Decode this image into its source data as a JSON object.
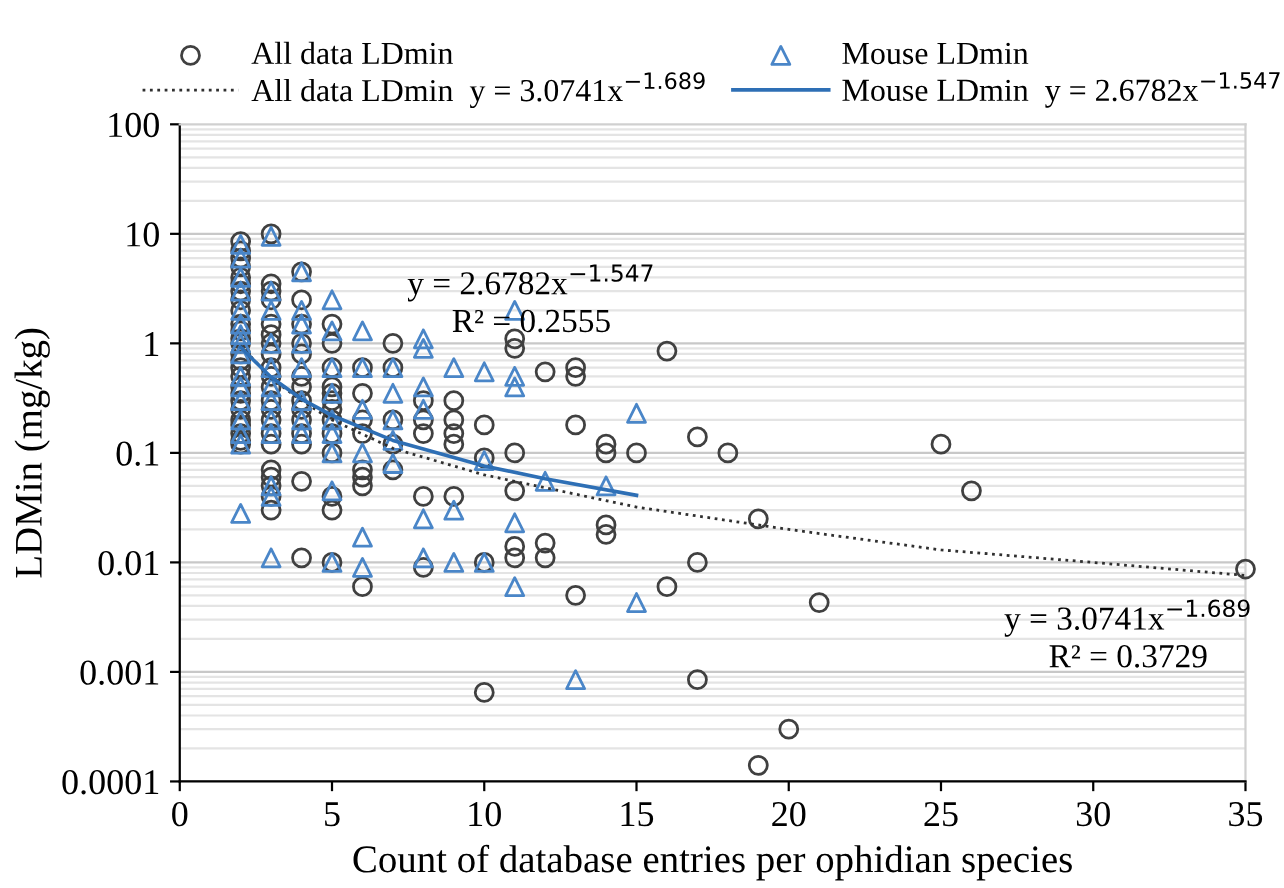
{
  "chart_data": {
    "type": "scatter",
    "xlabel": "Count of database entries per ophidian species",
    "ylabel": "LDMin (mg/kg)",
    "log": "y",
    "xlim": [
      0,
      35
    ],
    "xticks": [
      0,
      5,
      10,
      15,
      20,
      25,
      30,
      35
    ],
    "ylim": [
      0.0001,
      100
    ],
    "yticks": [
      0.0001,
      0.001,
      0.01,
      0.1,
      1,
      10,
      100
    ],
    "grid": "y",
    "legend": "top",
    "annotations": [
      "y = 2.6782x$^{−1.547}$\nR² = 0.2555",
      "y = 3.0741x$^{−1.689}$\nR² = 0.3729"
    ],
    "series": [
      {
        "name": "All data LDmin",
        "marker": "circle",
        "color": "#404040",
        "x": [
          2,
          2,
          2,
          2,
          2,
          2,
          2,
          2,
          2,
          2,
          2,
          2,
          2,
          2,
          2,
          2,
          2,
          2,
          2,
          2,
          2,
          2,
          2,
          2,
          2,
          2,
          3,
          3,
          3,
          3,
          3,
          3,
          3,
          3,
          3,
          3,
          3,
          3,
          3,
          3,
          3,
          3,
          3,
          3,
          3,
          3,
          3,
          4,
          4,
          4,
          4,
          4,
          4,
          4,
          4,
          4,
          4,
          4,
          4,
          4,
          4,
          5,
          5,
          5,
          5,
          5,
          5,
          5,
          5,
          5,
          5,
          5,
          5,
          5,
          6,
          6,
          6,
          6,
          6,
          6,
          6,
          6,
          7,
          7,
          7,
          7,
          7,
          8,
          8,
          8,
          8,
          8,
          9,
          9,
          9,
          9,
          9,
          10,
          10,
          10,
          10,
          11,
          11,
          11,
          11,
          11,
          11,
          12,
          12,
          12,
          13,
          13,
          13,
          13,
          14,
          14,
          14,
          14,
          15,
          16,
          16,
          17,
          17,
          17,
          18,
          19,
          19,
          20,
          21,
          25,
          26,
          35
        ],
        "values": [
          8.5,
          7,
          6,
          5,
          4,
          3.5,
          3,
          2.5,
          2,
          1.5,
          1.3,
          1.1,
          1,
          0.8,
          0.7,
          0.6,
          0.5,
          0.4,
          0.35,
          0.3,
          0.25,
          0.2,
          0.18,
          0.15,
          0.13,
          0.12,
          10,
          3.5,
          3,
          2.5,
          1.5,
          1.2,
          1,
          0.8,
          0.6,
          0.5,
          0.4,
          0.3,
          0.25,
          0.2,
          0.15,
          0.12,
          0.07,
          0.06,
          0.05,
          0.04,
          0.03,
          4.5,
          2.5,
          1.5,
          1,
          0.8,
          0.5,
          0.4,
          0.3,
          0.25,
          0.2,
          0.15,
          0.12,
          0.055,
          0.011,
          1.5,
          1,
          0.6,
          0.4,
          0.35,
          0.3,
          0.25,
          0.2,
          0.15,
          0.1,
          0.04,
          0.03,
          0.01,
          0.6,
          0.35,
          0.2,
          0.15,
          0.07,
          0.06,
          0.05,
          0.006,
          1,
          0.6,
          0.2,
          0.12,
          0.07,
          0.3,
          0.2,
          0.15,
          0.04,
          0.009,
          0.3,
          0.2,
          0.15,
          0.12,
          0.04,
          0.18,
          0.09,
          0.01,
          0.00065,
          1.1,
          0.9,
          0.1,
          0.045,
          0.014,
          0.011,
          0.55,
          0.015,
          0.011,
          0.6,
          0.5,
          0.18,
          0.005,
          0.12,
          0.1,
          0.022,
          0.018,
          0.1,
          0.85,
          0.006,
          0.14,
          0.01,
          0.00085,
          0.1,
          0.025,
          0.00014,
          0.0003,
          0.0043,
          0.12,
          0.045,
          0.0087
        ]
      },
      {
        "name": "Mouse LDmin",
        "marker": "triangle",
        "color": "#4a86c8",
        "x": [
          2,
          2,
          2,
          2,
          2,
          2,
          2,
          2,
          2,
          2,
          2,
          2,
          2,
          2,
          2,
          2,
          3,
          3,
          3,
          3,
          3,
          3,
          3,
          3,
          3,
          3,
          3,
          3,
          4,
          4,
          4,
          4,
          4,
          4,
          4,
          4,
          5,
          5,
          5,
          5,
          5,
          5,
          5,
          5,
          5,
          6,
          6,
          6,
          6,
          6,
          6,
          7,
          7,
          7,
          7,
          7,
          8,
          8,
          8,
          8,
          8,
          8,
          9,
          9,
          9,
          10,
          10,
          10,
          11,
          11,
          11,
          11,
          11,
          12,
          13,
          14,
          15,
          15
        ],
        "values": [
          8,
          6,
          4,
          3,
          2,
          1.5,
          1.2,
          1,
          0.8,
          0.5,
          0.4,
          0.3,
          0.2,
          0.15,
          0.12,
          0.028,
          9.5,
          3,
          2,
          1,
          0.6,
          0.4,
          0.3,
          0.2,
          0.15,
          0.05,
          0.04,
          0.011,
          4.5,
          2,
          1.5,
          1,
          0.6,
          0.3,
          0.2,
          0.15,
          2.5,
          1.3,
          0.6,
          0.35,
          0.2,
          0.15,
          0.1,
          0.045,
          0.01,
          1.3,
          0.6,
          0.25,
          0.1,
          0.017,
          0.009,
          0.6,
          0.35,
          0.2,
          0.13,
          0.08,
          1.1,
          0.9,
          0.4,
          0.25,
          0.025,
          0.011,
          0.6,
          0.03,
          0.01,
          0.55,
          0.085,
          0.01,
          2,
          0.5,
          0.4,
          0.023,
          0.006,
          0.055,
          0.00085,
          0.05,
          0.23,
          0.0043
        ]
      },
      {
        "name": "All data LDmin  y = 3.0741x$^{−1.689}$",
        "type": "line",
        "line_style": "dotted",
        "color": "#303030",
        "x": [
          2,
          3,
          4,
          5,
          7,
          10,
          15,
          20,
          25,
          30,
          35
        ],
        "values": [
          0.95,
          0.48,
          0.3,
          0.2,
          0.11,
          0.063,
          0.032,
          0.02,
          0.013,
          0.01,
          0.0076
        ]
      },
      {
        "name": "Mouse LDmin  y = 2.6782x$^{−1.547}$",
        "type": "line",
        "line_style": "solid",
        "color": "#2e6fb5",
        "x": [
          2,
          3,
          4,
          5,
          7,
          10,
          12,
          15
        ],
        "values": [
          0.92,
          0.49,
          0.31,
          0.22,
          0.13,
          0.076,
          0.058,
          0.041
        ]
      }
    ]
  }
}
